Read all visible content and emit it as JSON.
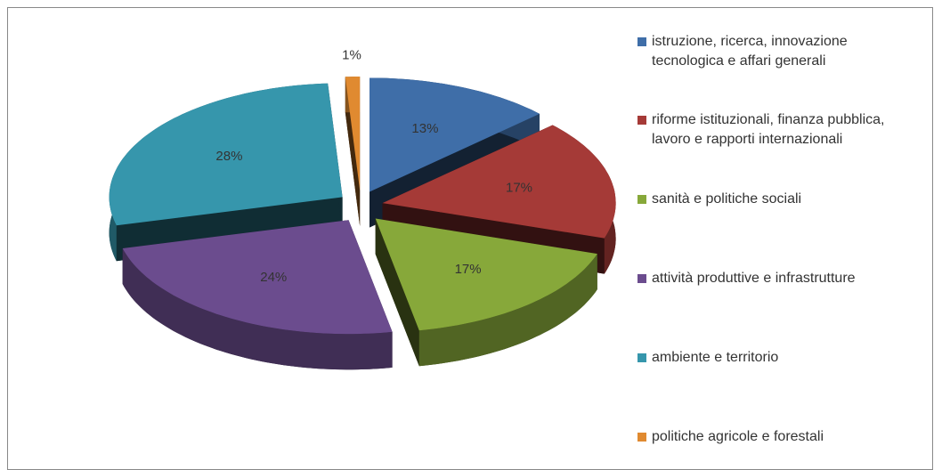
{
  "chart_data": {
    "type": "pie",
    "categories": [
      "istruzione, ricerca, innovazione tecnologica e affari generali",
      "riforme istituzionali, finanza pubblica, lavoro e rapporti internazionali",
      "sanità e politiche sociali",
      "attività produttive e infrastrutture",
      "ambiente e territorio",
      "politiche agricole e forestali"
    ],
    "values": [
      13,
      17,
      17,
      24,
      28,
      1
    ],
    "value_labels": [
      "13%",
      "17%",
      "17%",
      "24%",
      "28%",
      "1%"
    ],
    "colors": [
      "#3f6ea8",
      "#a53a37",
      "#87a83a",
      "#6b4c8e",
      "#3696ac",
      "#e08a30"
    ],
    "legend": "right"
  }
}
